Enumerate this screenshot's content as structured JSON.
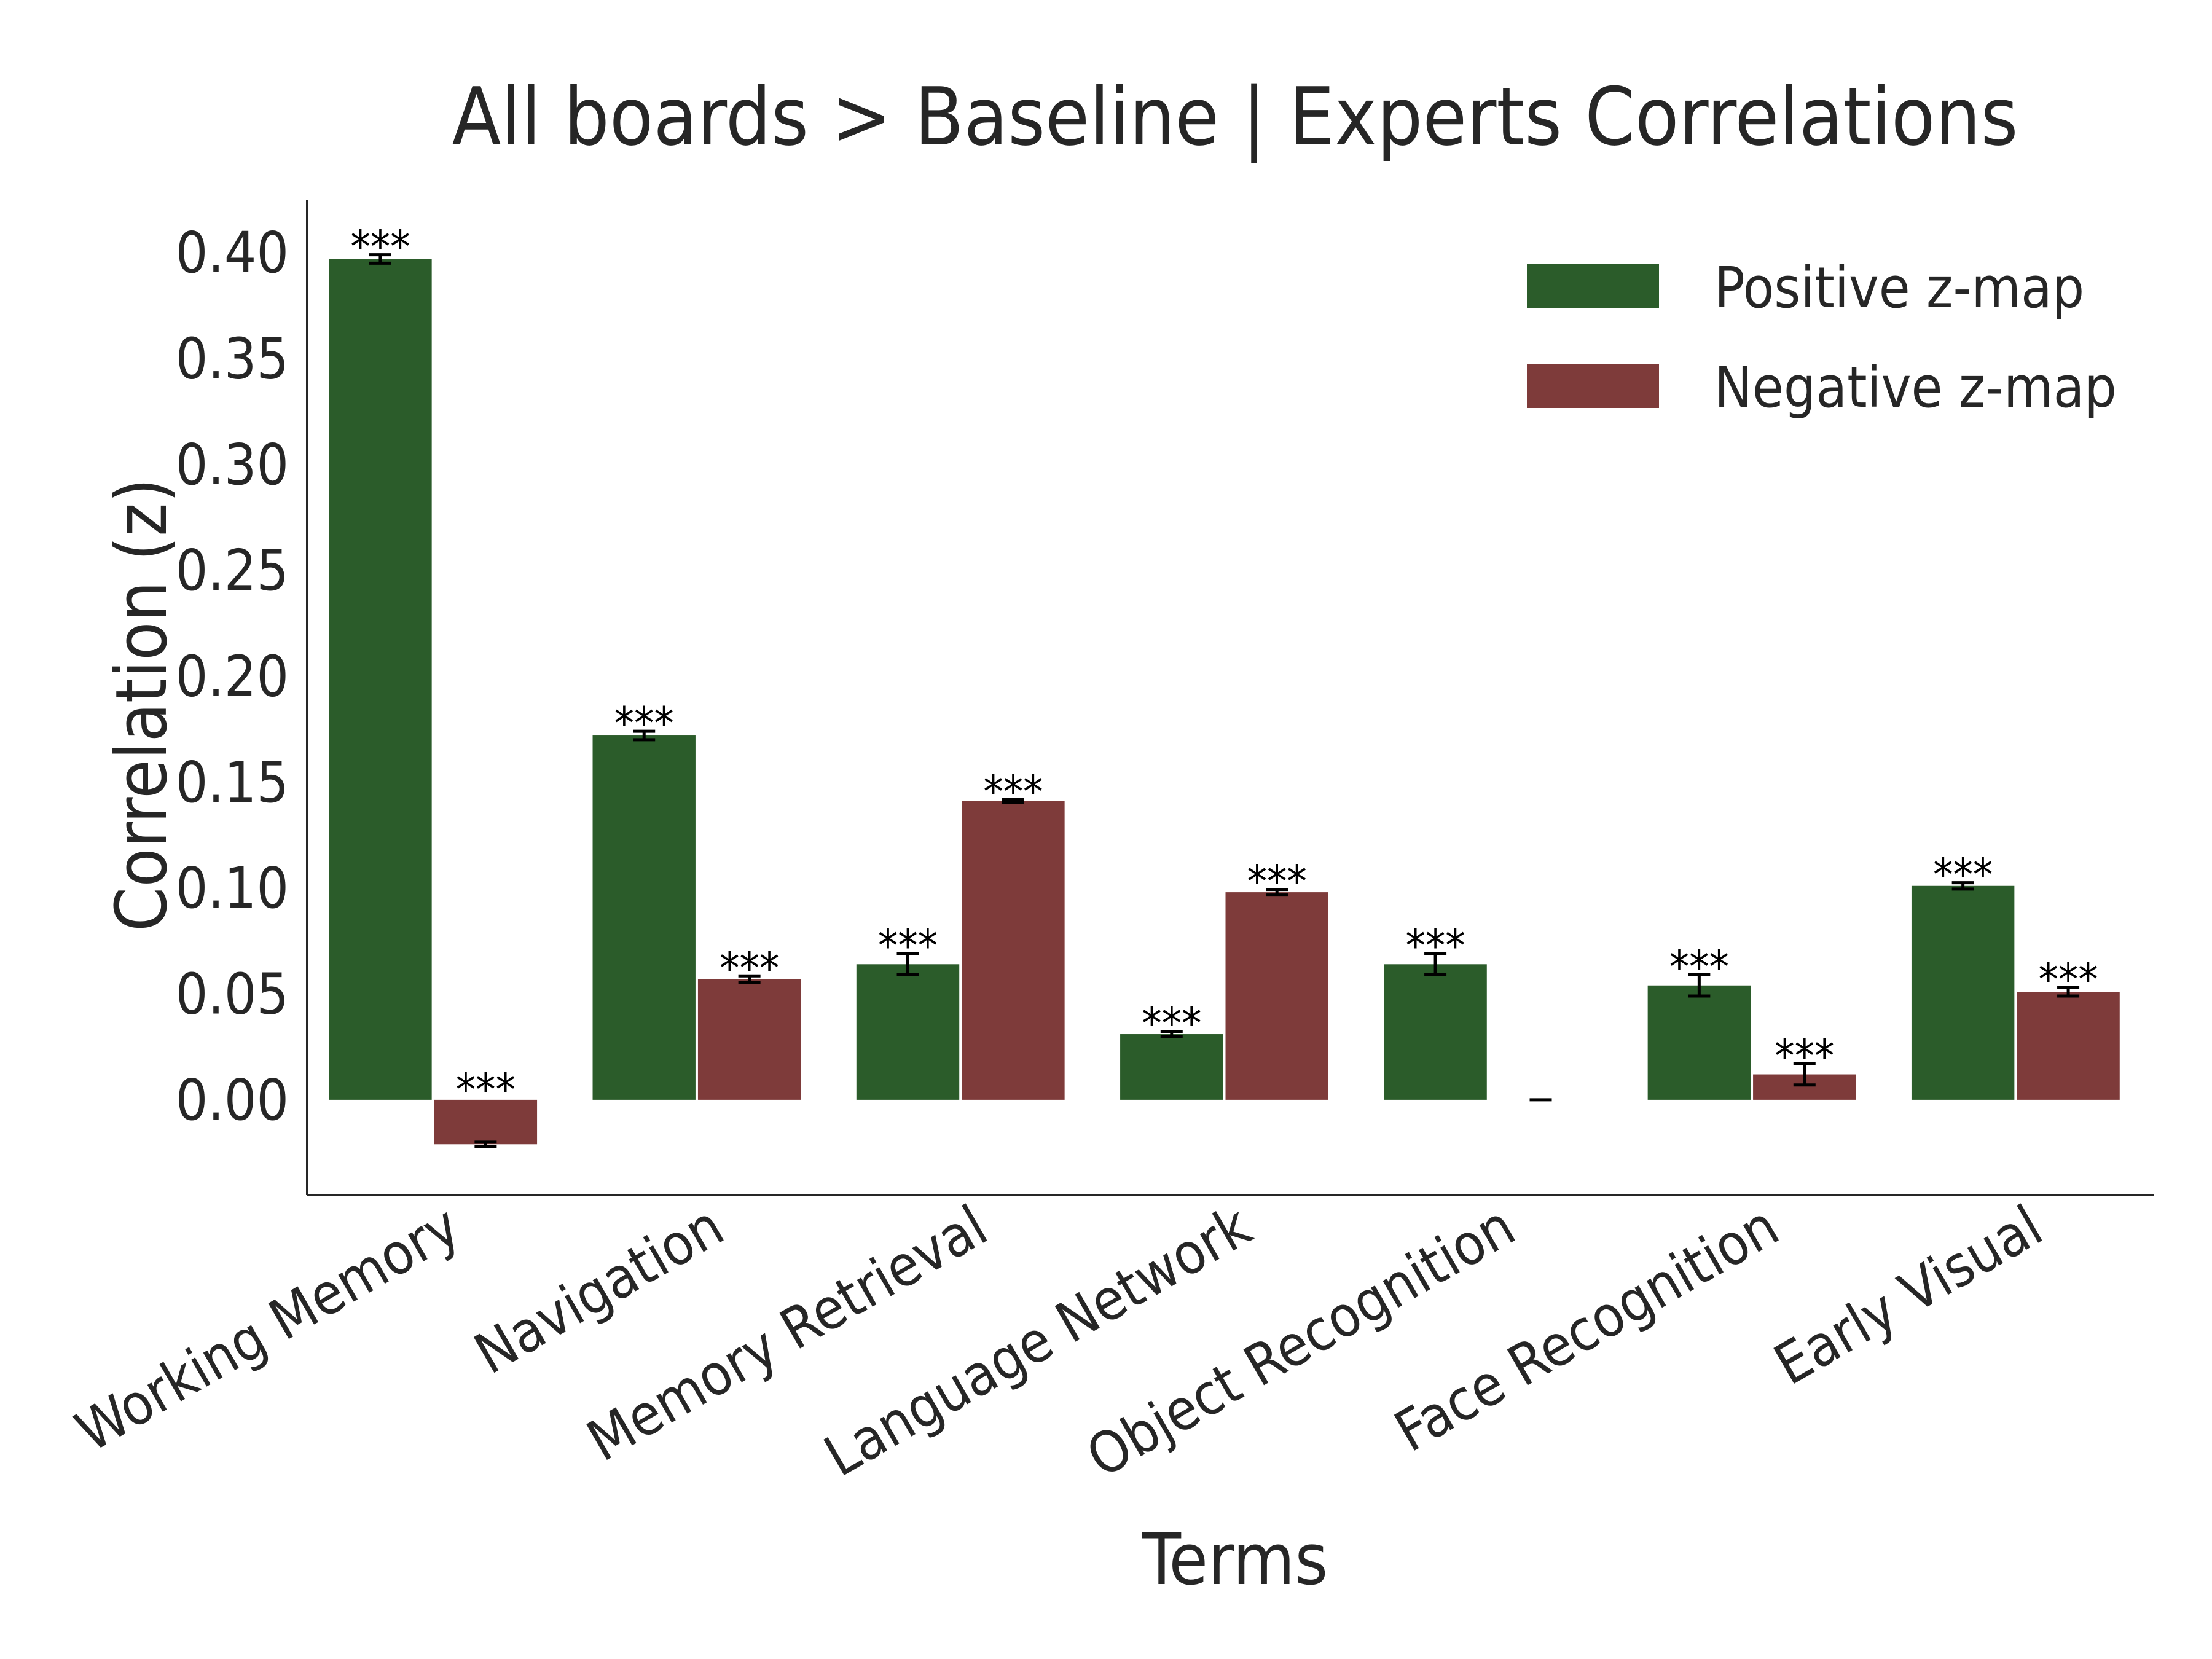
{
  "colors": {
    "positive": "#2b5c2a",
    "negative": "#7e3b3a",
    "axis": "#262626",
    "errorbar": "#000000"
  },
  "chart_data": {
    "type": "bar",
    "title": "All boards > Baseline | Experts Correlations",
    "xlabel": "Terms",
    "ylabel": "Correlation (z)",
    "ylim": [
      -0.045,
      0.425
    ],
    "yticks": [
      0.0,
      0.05,
      0.1,
      0.15,
      0.2,
      0.25,
      0.3,
      0.35,
      0.4
    ],
    "ytick_labels": [
      "0.00",
      "0.05",
      "0.10",
      "0.15",
      "0.20",
      "0.25",
      "0.30",
      "0.35",
      "0.40"
    ],
    "grid": false,
    "legend_position": "top-right",
    "categories": [
      "Working Memory",
      "Navigation",
      "Memory Retrieval",
      "Language Network",
      "Object Recognition",
      "Face Recognition",
      "Early Visual"
    ],
    "series": [
      {
        "name": "Positive z-map",
        "color": "#2b5c2a",
        "values": [
          0.397,
          0.172,
          0.064,
          0.031,
          0.064,
          0.054,
          0.101
        ],
        "errors": [
          0.002,
          0.002,
          0.005,
          0.0013,
          0.005,
          0.005,
          0.0015
        ],
        "significance": [
          "***",
          "***",
          "***",
          "***",
          "***",
          "***",
          "***"
        ]
      },
      {
        "name": "Negative z-map",
        "color": "#7e3b3a",
        "values": [
          -0.021,
          0.057,
          0.141,
          0.098,
          0.0,
          0.012,
          0.051
        ],
        "errors": [
          0.001,
          0.0015,
          0.0007,
          0.0013,
          0.0,
          0.005,
          0.002
        ],
        "significance": [
          "***",
          "***",
          "***",
          "***",
          "",
          "***",
          "***"
        ]
      }
    ]
  }
}
